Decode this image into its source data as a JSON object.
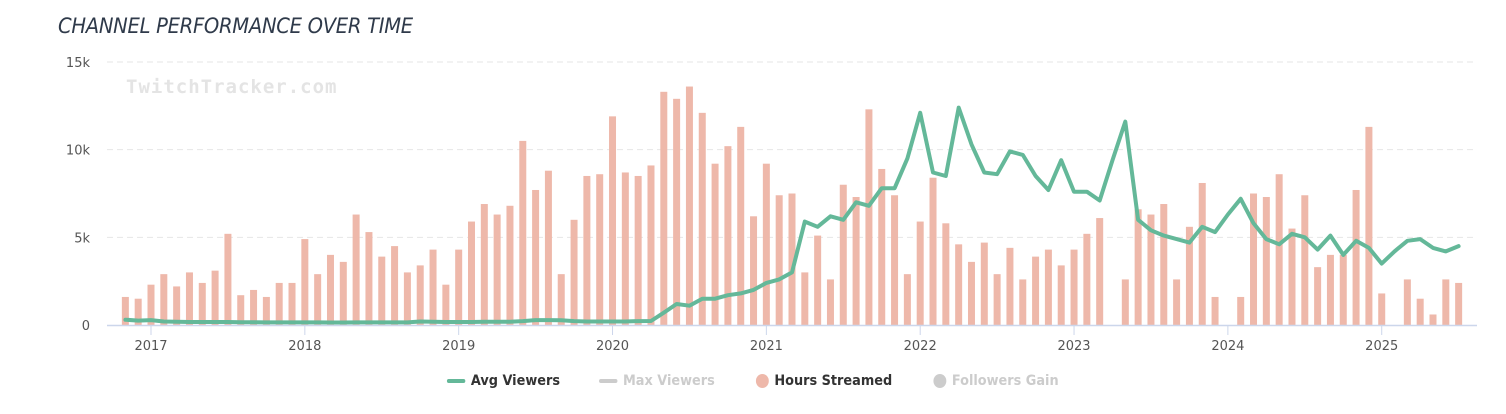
{
  "title": "CHANNEL PERFORMANCE OVER TIME",
  "watermark": "TwitchTracker.com",
  "colors": {
    "avg_viewers": "#64b899",
    "max_viewers": "#cccccc",
    "hours_streamed": "#eeb8aa",
    "followers_gain": "#cccccc",
    "grid": "#e6e6e6",
    "axis": "#ccd6eb"
  },
  "legend": [
    {
      "label": "Avg Viewers",
      "type": "line",
      "color": "#64b899",
      "active": true
    },
    {
      "label": "Max Viewers",
      "type": "line",
      "color": "#cccccc",
      "active": false
    },
    {
      "label": "Hours Streamed",
      "type": "dot",
      "color": "#eeb8aa",
      "active": true
    },
    {
      "label": "Followers Gain",
      "type": "dot",
      "color": "#cccccc",
      "active": false
    }
  ],
  "chart_data": {
    "type": "bar+line",
    "title": "CHANNEL PERFORMANCE OVER TIME",
    "xlabel": "",
    "ylabel": "",
    "ylim": [
      0,
      15000
    ],
    "yticks": [
      {
        "value": 0,
        "label": "0"
      },
      {
        "value": 5000,
        "label": "5k"
      },
      {
        "value": 10000,
        "label": "10k"
      },
      {
        "value": 15000,
        "label": "15k"
      }
    ],
    "xrange": [
      "2016-09",
      "2025-10"
    ],
    "xticks": [
      "2017",
      "2018",
      "2019",
      "2020",
      "2021",
      "2022",
      "2023",
      "2024",
      "2025"
    ],
    "grid": true,
    "legend_position": "bottom",
    "start_month": "2016-11",
    "months": [
      "2016-11",
      "2016-12",
      "2017-01",
      "2017-02",
      "2017-03",
      "2017-04",
      "2017-05",
      "2017-06",
      "2017-07",
      "2017-08",
      "2017-09",
      "2017-10",
      "2017-11",
      "2017-12",
      "2018-01",
      "2018-02",
      "2018-03",
      "2018-04",
      "2018-05",
      "2018-06",
      "2018-07",
      "2018-08",
      "2018-09",
      "2018-10",
      "2018-11",
      "2018-12",
      "2019-01",
      "2019-02",
      "2019-03",
      "2019-04",
      "2019-05",
      "2019-06",
      "2019-07",
      "2019-08",
      "2019-09",
      "2019-10",
      "2019-11",
      "2019-12",
      "2020-01",
      "2020-02",
      "2020-03",
      "2020-04",
      "2020-05",
      "2020-06",
      "2020-07",
      "2020-08",
      "2020-09",
      "2020-10",
      "2020-11",
      "2020-12",
      "2021-01",
      "2021-02",
      "2021-03",
      "2021-04",
      "2021-05",
      "2021-06",
      "2021-07",
      "2021-08",
      "2021-09",
      "2021-10",
      "2021-11",
      "2021-12",
      "2022-01",
      "2022-02",
      "2022-03",
      "2022-04",
      "2022-05",
      "2022-06",
      "2022-07",
      "2022-08",
      "2022-09",
      "2022-10",
      "2022-11",
      "2022-12",
      "2023-01",
      "2023-02",
      "2023-03",
      "2023-04",
      "2023-05",
      "2023-06",
      "2023-07",
      "2023-08",
      "2023-09",
      "2023-10",
      "2023-11",
      "2023-12",
      "2024-01",
      "2024-02",
      "2024-03",
      "2024-04",
      "2024-05",
      "2024-06",
      "2024-07",
      "2024-08",
      "2024-09",
      "2024-10",
      "2024-11",
      "2024-12",
      "2025-01",
      "2025-02",
      "2025-03",
      "2025-04",
      "2025-05",
      "2025-06",
      "2025-07"
    ],
    "series": [
      {
        "name": "Hours Streamed",
        "type": "bar",
        "values": [
          1600,
          1500,
          2300,
          2900,
          2200,
          3000,
          2400,
          3100,
          5200,
          1700,
          2000,
          1600,
          2400,
          2400,
          4900,
          2900,
          4000,
          3600,
          6300,
          5300,
          3900,
          4500,
          3000,
          3400,
          4300,
          2300,
          4300,
          5900,
          6900,
          6300,
          6800,
          10500,
          7700,
          8800,
          2900,
          6000,
          8500,
          8600,
          11900,
          8700,
          8500,
          9100,
          13300,
          12900,
          13600,
          12100,
          9200,
          10200,
          11300,
          6200,
          9200,
          7400,
          7500,
          3000,
          5100,
          2600,
          8000,
          7300,
          12300,
          8900,
          7400,
          2900,
          5900,
          8400,
          5800,
          4600,
          3600,
          4700,
          2900,
          4400,
          2600,
          3900,
          4300,
          3400,
          4300,
          5200,
          6100,
          0,
          2600,
          6600,
          6300,
          6900,
          2600,
          5600,
          8100,
          1600,
          0,
          1600,
          7500,
          7300,
          8600,
          5500,
          7400,
          3300,
          4000,
          4000,
          7700,
          11300,
          1800,
          0,
          2600,
          1500,
          600,
          2600,
          2400
        ]
      },
      {
        "name": "Avg Viewers",
        "type": "line",
        "values": [
          300,
          250,
          280,
          200,
          180,
          170,
          170,
          170,
          170,
          160,
          160,
          150,
          150,
          150,
          150,
          150,
          140,
          140,
          150,
          150,
          150,
          150,
          150,
          200,
          180,
          170,
          170,
          170,
          180,
          180,
          180,
          220,
          280,
          280,
          270,
          220,
          200,
          200,
          200,
          200,
          220,
          230,
          700,
          1200,
          1100,
          1500,
          1500,
          1700,
          1800,
          2000,
          2400,
          2600,
          3000,
          5900,
          5600,
          6200,
          6000,
          7000,
          6800,
          7800,
          7800,
          9500,
          12100,
          8700,
          8500,
          12400,
          10300,
          8700,
          8600,
          9900,
          9700,
          8500,
          7700,
          9400,
          7600,
          7600,
          7100,
          9400,
          11600,
          6000,
          5400,
          5100,
          4900,
          4700,
          5600,
          5300,
          6300,
          7200,
          5800,
          4900,
          4600,
          5200,
          5000,
          4300,
          5100,
          4000,
          4800,
          4400,
          3500,
          4200,
          4800,
          4900,
          4400,
          4200,
          4500
        ]
      }
    ]
  }
}
